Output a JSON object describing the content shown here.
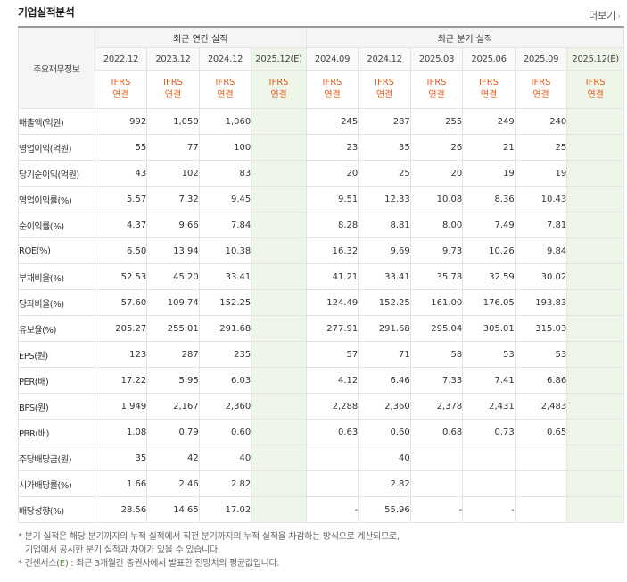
{
  "header": {
    "title": "기업실적분석",
    "more_label": "더보기",
    "more_arrow": "›"
  },
  "table": {
    "corner_label": "주요재무정보",
    "annual_group": "최근 연간 실적",
    "quarter_group": "최근 분기 실적",
    "annual_periods": [
      "2022.12",
      "2023.12",
      "2024.12",
      "2025.12(E)"
    ],
    "quarter_periods": [
      "2024.09",
      "2024.12",
      "2025.03",
      "2025.06",
      "2025.09",
      "2025.12(E)"
    ],
    "basis_line1": "IFRS",
    "basis_line2": "연결",
    "rows": [
      {
        "label": "매출액(억원)",
        "values": [
          "992",
          "1,050",
          "1,060",
          "",
          "245",
          "287",
          "255",
          "249",
          "240",
          ""
        ]
      },
      {
        "label": "영업이익(억원)",
        "values": [
          "55",
          "77",
          "100",
          "",
          "23",
          "35",
          "26",
          "21",
          "25",
          ""
        ]
      },
      {
        "label": "당기순이익(억원)",
        "values": [
          "43",
          "102",
          "83",
          "",
          "20",
          "25",
          "20",
          "19",
          "19",
          ""
        ]
      },
      {
        "label": "영업이익률(%)",
        "values": [
          "5.57",
          "7.32",
          "9.45",
          "",
          "9.51",
          "12.33",
          "10.08",
          "8.36",
          "10.43",
          ""
        ]
      },
      {
        "label": "순이익률(%)",
        "values": [
          "4.37",
          "9.66",
          "7.84",
          "",
          "8.28",
          "8.81",
          "8.00",
          "7.49",
          "7.81",
          ""
        ]
      },
      {
        "label": "ROE(%)",
        "values": [
          "6.50",
          "13.94",
          "10.38",
          "",
          "16.32",
          "9.69",
          "9.73",
          "10.26",
          "9.84",
          ""
        ]
      },
      {
        "label": "부채비율(%)",
        "values": [
          "52.53",
          "45.20",
          "33.41",
          "",
          "41.21",
          "33.41",
          "35.78",
          "32.59",
          "30.02",
          ""
        ]
      },
      {
        "label": "당좌비율(%)",
        "values": [
          "57.60",
          "109.74",
          "152.25",
          "",
          "124.49",
          "152.25",
          "161.00",
          "176.05",
          "193.83",
          ""
        ]
      },
      {
        "label": "유보율(%)",
        "values": [
          "205.27",
          "255.01",
          "291.68",
          "",
          "277.91",
          "291.68",
          "295.04",
          "305.01",
          "315.03",
          ""
        ]
      },
      {
        "label": "EPS(원)",
        "values": [
          "123",
          "287",
          "235",
          "",
          "57",
          "71",
          "58",
          "53",
          "53",
          ""
        ]
      },
      {
        "label": "PER(배)",
        "values": [
          "17.22",
          "5.95",
          "6.03",
          "",
          "4.12",
          "6.46",
          "7.33",
          "7.41",
          "6.86",
          ""
        ]
      },
      {
        "label": "BPS(원)",
        "values": [
          "1,949",
          "2,167",
          "2,360",
          "",
          "2,288",
          "2,360",
          "2,378",
          "2,431",
          "2,483",
          ""
        ]
      },
      {
        "label": "PBR(배)",
        "values": [
          "1.08",
          "0.79",
          "0.60",
          "",
          "0.63",
          "0.60",
          "0.68",
          "0.73",
          "0.65",
          ""
        ]
      },
      {
        "label": "주당배당금(원)",
        "values": [
          "35",
          "42",
          "40",
          "",
          "",
          "40",
          "",
          "",
          "",
          ""
        ]
      },
      {
        "label": "시가배당률(%)",
        "values": [
          "1.66",
          "2.46",
          "2.82",
          "",
          "",
          "2.82",
          "",
          "",
          "",
          ""
        ]
      },
      {
        "label": "배당성향(%)",
        "values": [
          "28.56",
          "14.65",
          "17.02",
          "",
          "-",
          "55.96",
          "-",
          "-",
          "",
          ""
        ]
      }
    ]
  },
  "notes": {
    "line1": "* 분기 실적은 해당 분기까지의 누적 실적에서 직전 분기까지의 누적 실적을 차감하는 방식으로 계산되므로,",
    "line2": "기업에서 공시한 분기 실적과 차이가 있을 수 있습니다.",
    "line3_prefix": "* 컨센서스(",
    "line3_e": "E",
    "line3_suffix": ") : 최근 3개월간 증권사에서 발표한 전망치의 평균값입니다."
  }
}
